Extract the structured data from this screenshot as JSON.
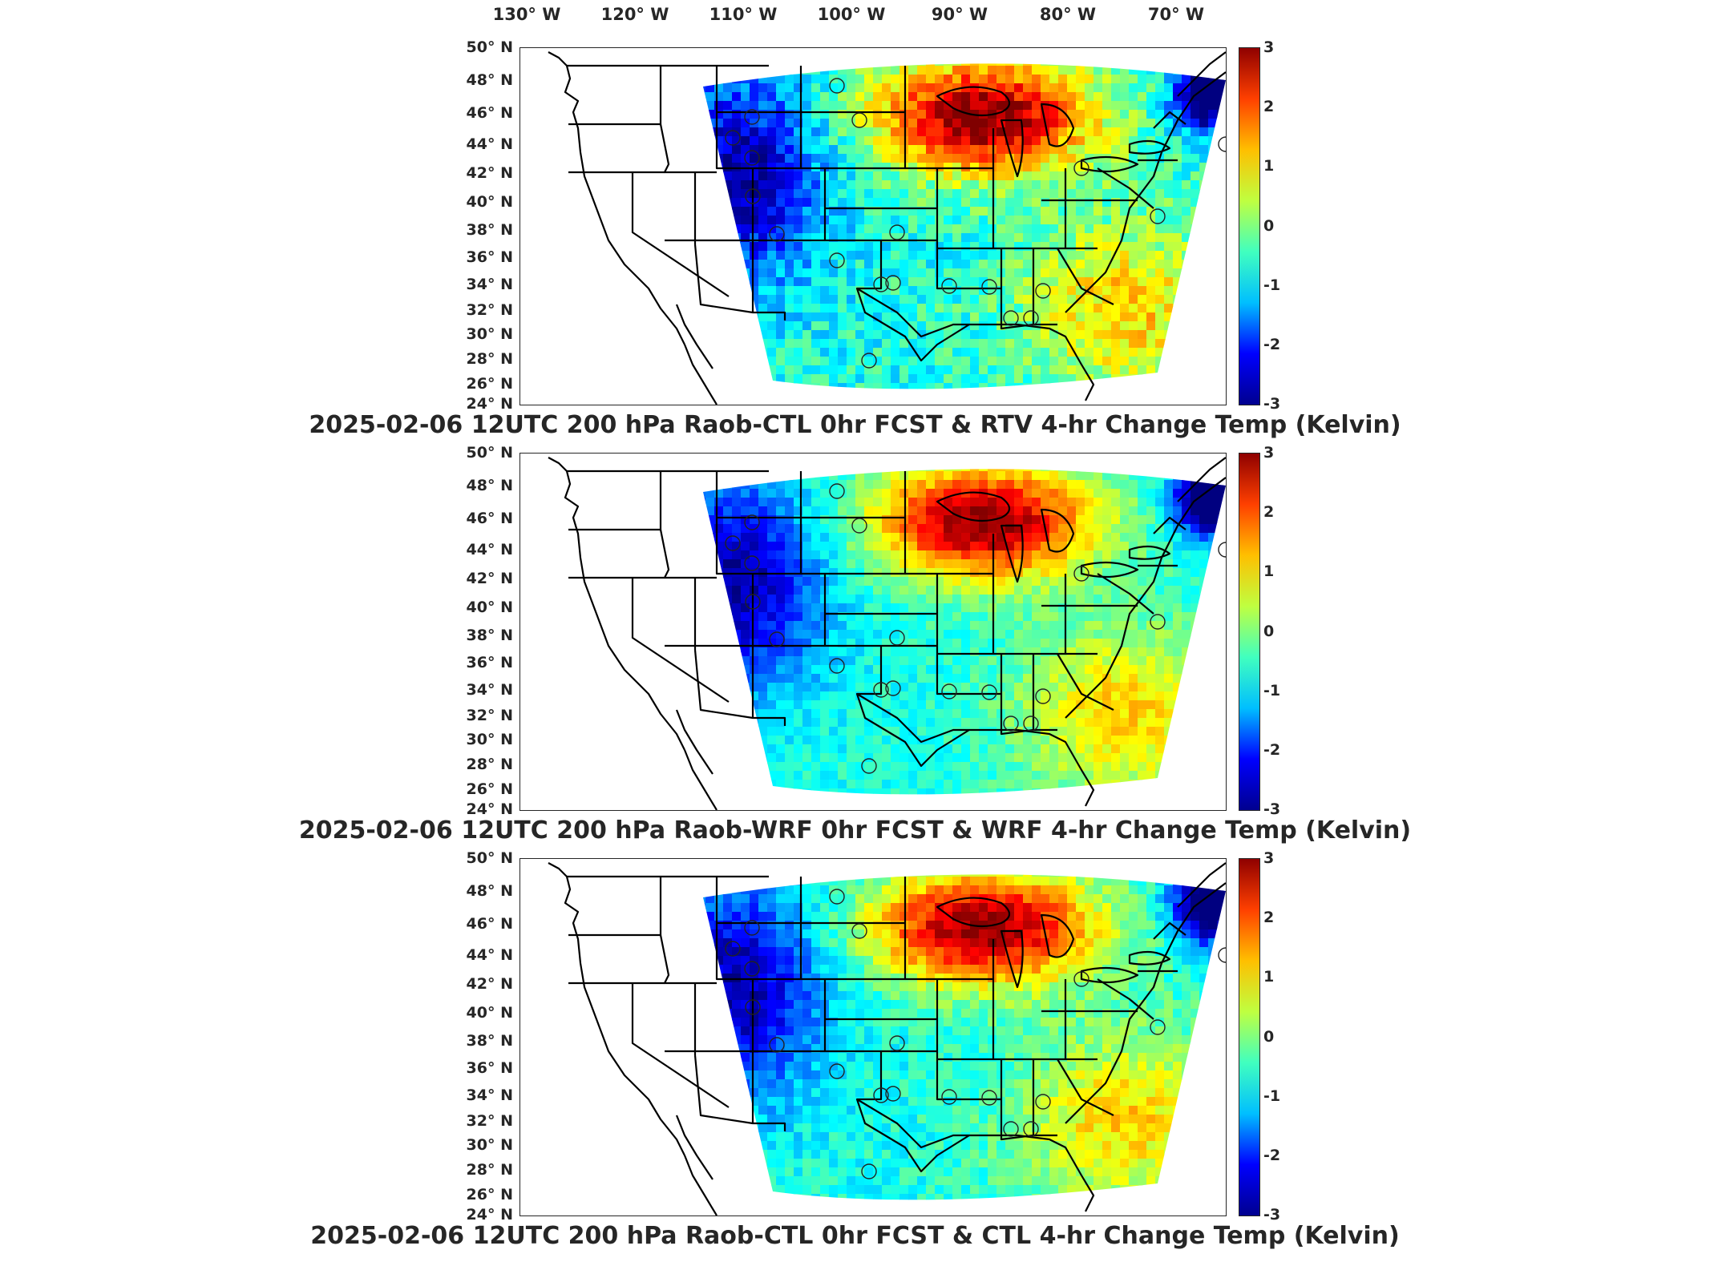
{
  "lon_labels": [
    "130° W",
    "120° W",
    "110° W",
    "100° W",
    "90° W",
    "80° W",
    "70° W"
  ],
  "lat_labels": [
    "50° N",
    "48° N",
    "46° N",
    "44° N",
    "42° N",
    "40° N",
    "38° N",
    "36° N",
    "34° N",
    "32° N",
    "30° N",
    "28° N",
    "26° N",
    "24° N"
  ],
  "colorbar": {
    "ticks": [
      "3",
      "2",
      "1",
      "0",
      "-1",
      "-2",
      "-3"
    ],
    "min": -3,
    "max": 3,
    "colormap": "jet",
    "colors": [
      "#00008f",
      "#0000ff",
      "#00bfff",
      "#40ffbf",
      "#bfff40",
      "#ffbf00",
      "#ff4000",
      "#8f0000"
    ]
  },
  "panels": [
    {
      "title": "2025-02-06 12UTC 200 hPa Raob-CTL 0hr FCST & RTV 4-hr Change Temp (Kelvin)"
    },
    {
      "title": "2025-02-06 12UTC 200 hPa Raob-WRF 0hr FCST & WRF 4-hr Change Temp (Kelvin)"
    },
    {
      "title": "2025-02-06 12UTC 200 hPa Raob-CTL 0hr FCST & CTL 4-hr Change Temp (Kelvin)"
    }
  ]
}
